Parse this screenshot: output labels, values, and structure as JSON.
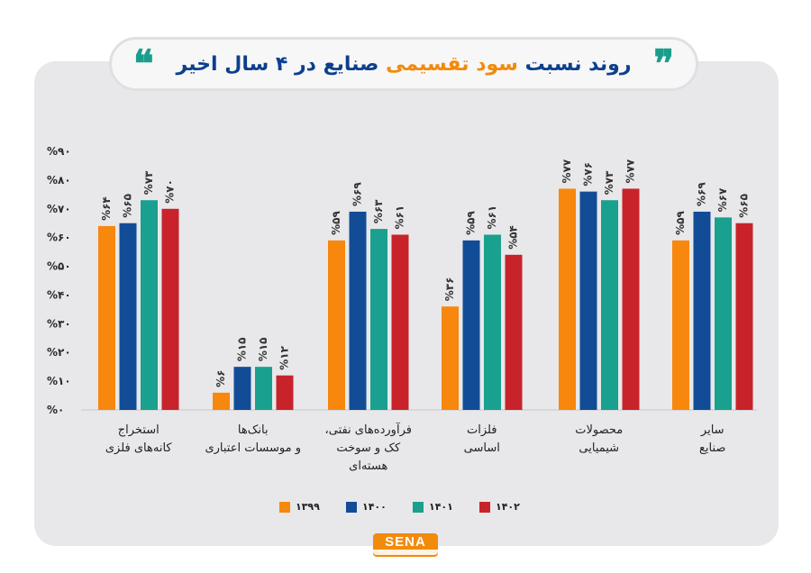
{
  "title": {
    "part1": "روند نسبت",
    "part2": "سود تقسیمی",
    "part3": "صنایع در ۴ سال اخیر"
  },
  "quote_open": "❞",
  "quote_close": "❝",
  "logo": "SENA",
  "colors": {
    "s1399": "#f7870d",
    "s1400": "#124c96",
    "s1401": "#1aa08e",
    "s1402": "#c8232a"
  },
  "chart_data": {
    "type": "bar",
    "ylim": [
      0,
      90
    ],
    "yticks": [
      "%۰",
      "%۱۰",
      "%۲۰",
      "%۳۰",
      "%۴۰",
      "%۵۰",
      "%۶۰",
      "%۷۰",
      "%۸۰",
      "%۹۰"
    ],
    "grid": false,
    "legend_position": "bottom",
    "categories": [
      [
        "استخراج",
        "کانه‌های فلزی"
      ],
      [
        "بانک‌ها",
        "و موسسات اعتباری"
      ],
      [
        "فرآورده‌های نفتی،",
        "کک و سوخت",
        "هسته‌ای"
      ],
      [
        "فلزات",
        "اساسی"
      ],
      [
        "محصولات",
        "شیمیایی"
      ],
      [
        "سایر",
        "صنایع"
      ]
    ],
    "series": [
      {
        "name": "۱۳۹۹",
        "color": "#f7870d",
        "values": [
          64,
          6,
          59,
          36,
          77,
          59
        ],
        "labels": [
          "%۶۴",
          "%۶",
          "%۵۹",
          "%۳۶",
          "%۷۷",
          "%۵۹"
        ]
      },
      {
        "name": "۱۴۰۰",
        "color": "#124c96",
        "values": [
          65,
          15,
          69,
          59,
          76,
          69
        ],
        "labels": [
          "%۶۵",
          "%۱۵",
          "%۶۹",
          "%۵۹",
          "%۷۶",
          "%۶۹"
        ]
      },
      {
        "name": "۱۴۰۱",
        "color": "#1aa08e",
        "values": [
          73,
          15,
          63,
          61,
          73,
          67
        ],
        "labels": [
          "%۷۳",
          "%۱۵",
          "%۶۳",
          "%۶۱",
          "%۷۳",
          "%۶۷"
        ]
      },
      {
        "name": "۱۴۰۲",
        "color": "#c8232a",
        "values": [
          70,
          12,
          61,
          54,
          77,
          65
        ],
        "labels": [
          "%۷۰",
          "%۱۲",
          "%۶۱",
          "%۵۴",
          "%۷۷",
          "%۶۵"
        ]
      }
    ]
  }
}
